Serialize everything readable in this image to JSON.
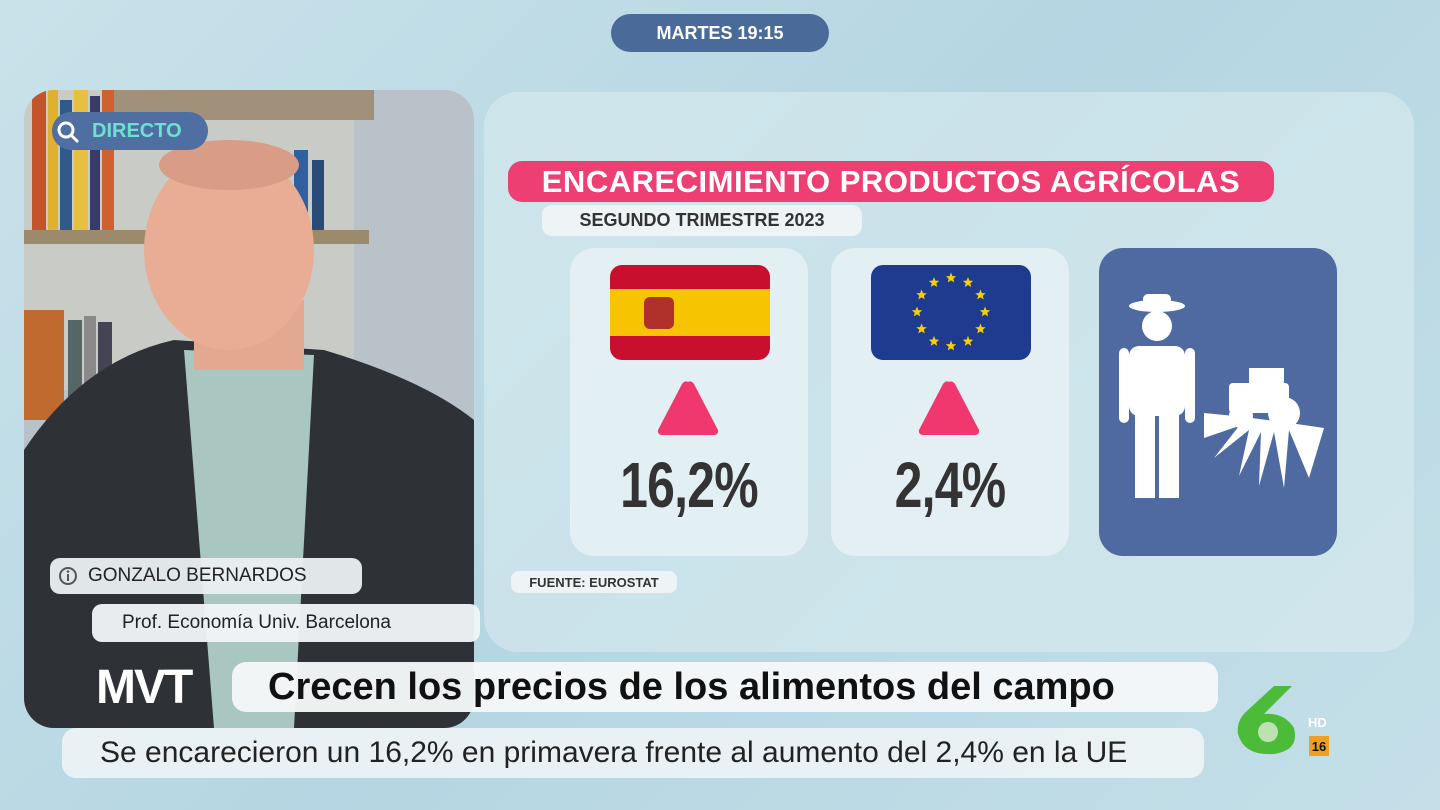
{
  "top_badge": {
    "text": "MARTES 19:15"
  },
  "video": {
    "live_label": "DIRECTO",
    "speaker_name": "GONZALO BERNARDOS",
    "speaker_role": "Prof. Economía Univ. Barcelona"
  },
  "infographic": {
    "title": "ENCARECIMIENTO PRODUCTOS AGRÍCOLAS",
    "subtitle": "SEGUNDO TRIMESTRE 2023",
    "cards": [
      {
        "value": "16,2%"
      },
      {
        "value": "2,4%"
      }
    ],
    "source": "FUENTE: EUROSTAT"
  },
  "ticker": {
    "program": "MVT",
    "headline": "Crecen los precios de los alimentos del campo",
    "subheadline": "Se encarecieron un 16,2% en primavera frente al aumento del 2,4% en la UE"
  },
  "channel": {
    "quality": "HD",
    "rating": "16"
  }
}
